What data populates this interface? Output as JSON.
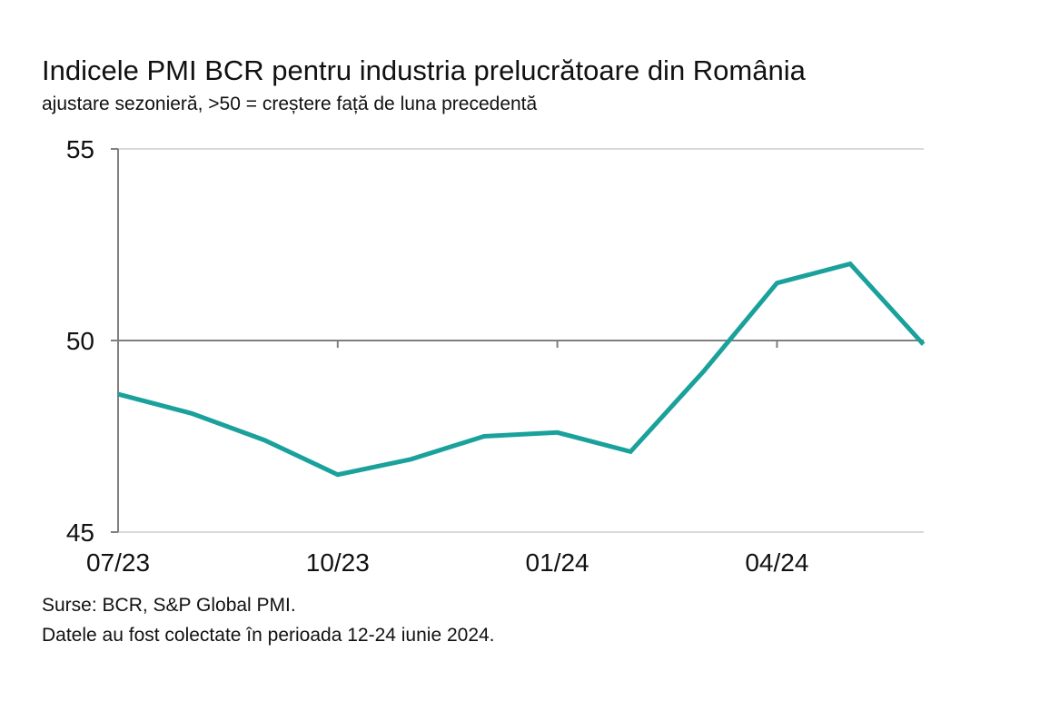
{
  "colors": {
    "line": "#1aa19c",
    "grid": "#d9d9d9",
    "axis": "#7f7f7f",
    "text": "#111111"
  },
  "chart_data": {
    "type": "line",
    "title": "Indicele PMI BCR pentru industria prelucrătoare din România",
    "subtitle": "ajustare sezonieră, >50 = creștere față de luna precedentă",
    "xlabel": "",
    "ylabel": "",
    "x": [
      "07/23",
      "08/23",
      "09/23",
      "10/23",
      "11/23",
      "12/23",
      "01/24",
      "02/24",
      "03/24",
      "04/24",
      "05/24",
      "06/24"
    ],
    "x_tick_labels": [
      "07/23",
      "10/23",
      "01/24",
      "04/24"
    ],
    "y_tick_labels": [
      "45",
      "50",
      "55"
    ],
    "ylim": [
      45,
      55
    ],
    "reference_line": 50,
    "grid": "horizontal",
    "series": [
      {
        "values": [
          48.6,
          48.1,
          47.4,
          46.5,
          46.9,
          47.5,
          47.6,
          47.1,
          49.2,
          51.5,
          52.0,
          49.9
        ]
      }
    ]
  },
  "footer": {
    "source": "Surse: BCR, S&P Global PMI.",
    "note": "Datele au fost colectate în perioada 12-24 iunie 2024."
  }
}
